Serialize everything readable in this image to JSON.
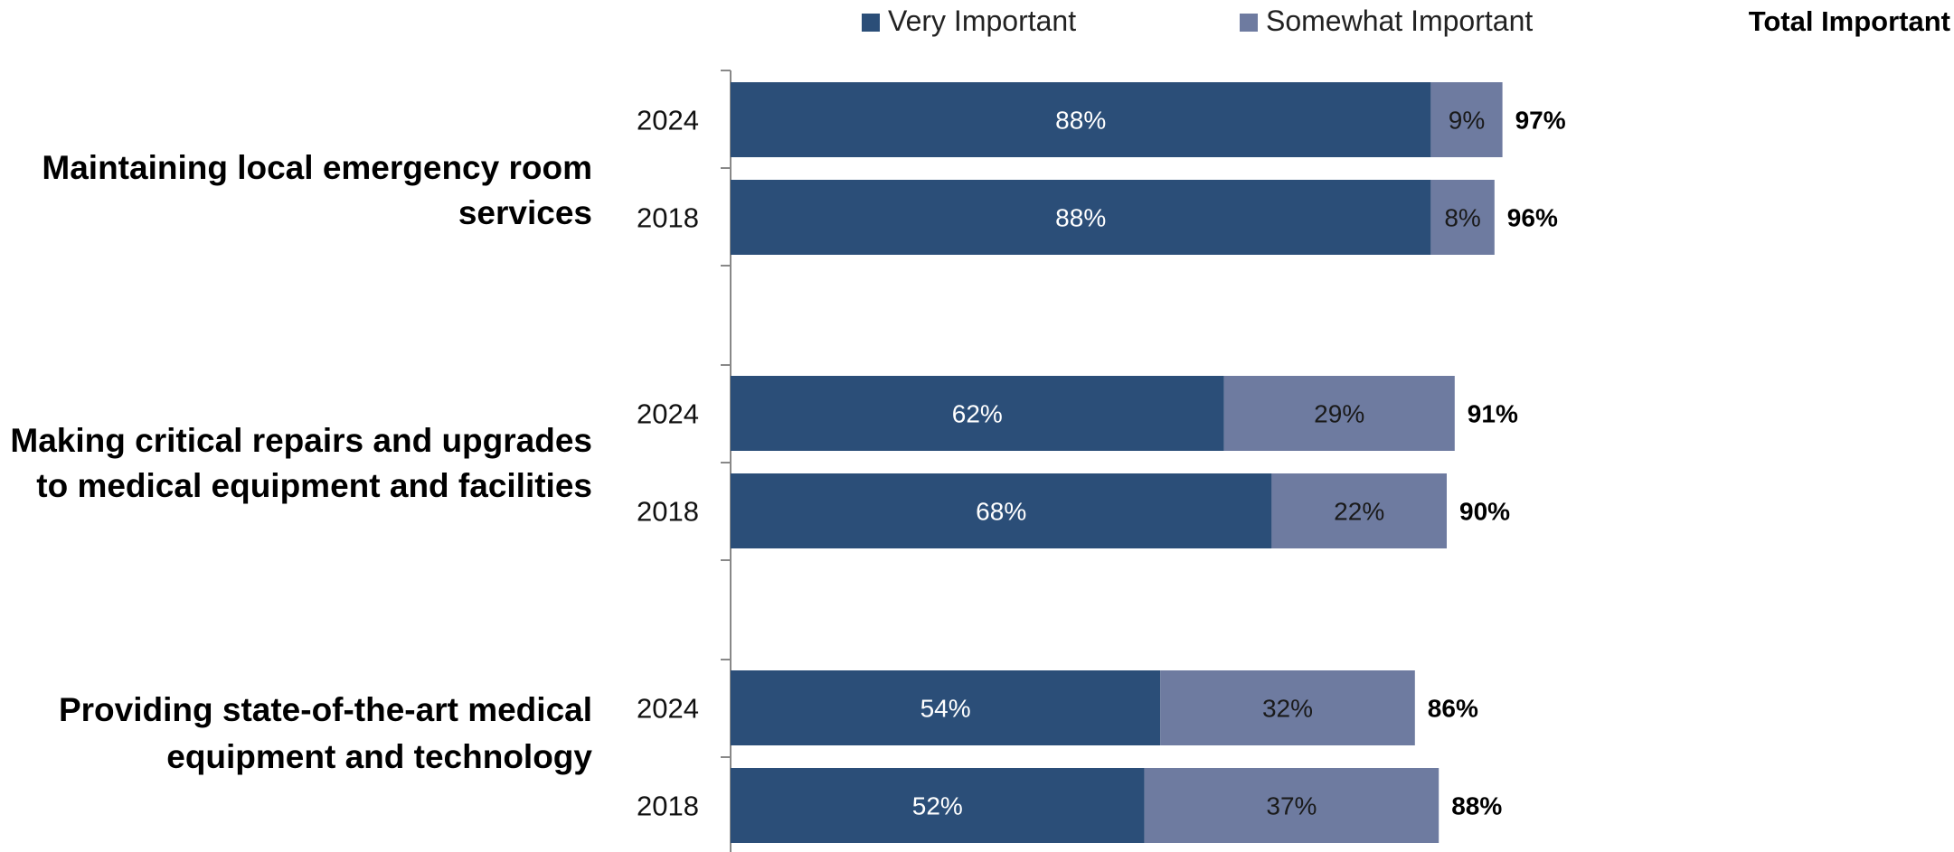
{
  "chart_data": {
    "type": "bar",
    "orientation": "horizontal",
    "stacked": true,
    "legend_placement": "top",
    "grid": false,
    "xlim": [
      0,
      100
    ],
    "legend": {
      "very": "Very Important",
      "somewhat": "Somewhat Important",
      "total": "Total Important"
    },
    "colors": {
      "very": "#2b4e78",
      "somewhat": "#6e7ba0"
    },
    "groups": [
      {
        "label": [
          "Maintaining local emergency room",
          "services"
        ],
        "bars": [
          {
            "year": "2024",
            "very": 88,
            "somewhat": 9,
            "total": 97,
            "very_label": "88%",
            "somewhat_label": "9%",
            "total_label": "97%"
          },
          {
            "year": "2018",
            "very": 88,
            "somewhat": 8,
            "total": 96,
            "very_label": "88%",
            "somewhat_label": "8%",
            "total_label": "96%"
          }
        ]
      },
      {
        "label": [
          "Making critical repairs and upgrades",
          "to medical equipment and facilities"
        ],
        "bars": [
          {
            "year": "2024",
            "very": 62,
            "somewhat": 29,
            "total": 91,
            "very_label": "62%",
            "somewhat_label": "29%",
            "total_label": "91%"
          },
          {
            "year": "2018",
            "very": 68,
            "somewhat": 22,
            "total": 90,
            "very_label": "68%",
            "somewhat_label": "22%",
            "total_label": "90%"
          }
        ]
      },
      {
        "label": [
          "Providing state-of-the-art medical",
          "equipment and technology"
        ],
        "bars": [
          {
            "year": "2024",
            "very": 54,
            "somewhat": 32,
            "total": 86,
            "very_label": "54%",
            "somewhat_label": "32%",
            "total_label": "86%"
          },
          {
            "year": "2018",
            "very": 52,
            "somewhat": 37,
            "total": 88,
            "very_label": "52%",
            "somewhat_label": "37%",
            "total_label": "88%"
          }
        ]
      }
    ]
  }
}
